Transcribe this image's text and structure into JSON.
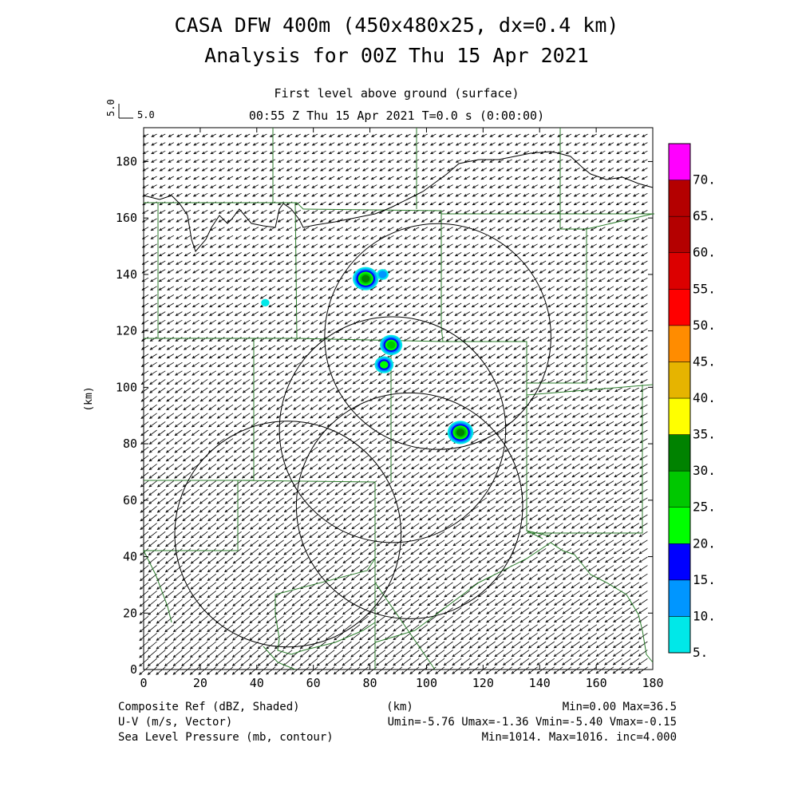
{
  "header": {
    "title_line1": "CASA DFW 400m (450x480x25, dx=0.4 km)",
    "title_line2": "Analysis for 00Z Thu 15 Apr 2021",
    "level_label": "First level above ground (surface)",
    "time_label": "00:55 Z Thu 15 Apr 2021    T=0.0 s (0:00:00)",
    "vector_ref_label": "5.0",
    "vector_ref_value": "5.0"
  },
  "footer": {
    "left1": "Composite Ref (dBZ, Shaded)",
    "left2": "U-V (m/s, Vector)",
    "left3": "Sea Level Pressure (mb, contour)",
    "center1": "(km)",
    "right1": "Min=0.00 Max=36.5",
    "right2": "Umin=-5.76 Umax=-1.36 Vmin=-5.40 Vmax=-0.15",
    "right3": "Min=1014. Max=1016. inc=4.000"
  },
  "chart_data": {
    "type": "heatmap",
    "ylabel": "(km)",
    "xlabel": "(km)",
    "xlim": [
      0,
      180
    ],
    "ylim": [
      0,
      192
    ],
    "x_ticks": [
      "0",
      "20",
      "40",
      "60",
      "80",
      "100",
      "120",
      "140",
      "160",
      "180"
    ],
    "y_ticks": [
      "0",
      "20",
      "40",
      "60",
      "80",
      "100",
      "120",
      "140",
      "160",
      "180"
    ],
    "colorbar": {
      "levels": [
        "5.",
        "10.",
        "15.",
        "20.",
        "25.",
        "30.",
        "35.",
        "40.",
        "45.",
        "50.",
        "55.",
        "60.",
        "65.",
        "70."
      ],
      "colors": [
        "#00e8e8",
        "#0096ff",
        "#0000ff",
        "#00ff00",
        "#00c800",
        "#008200",
        "#ffff00",
        "#e6b400",
        "#ff8c00",
        "#ff0000",
        "#dc0000",
        "#b40000",
        "#b40000",
        "#ff00ff"
      ]
    },
    "vector_field": {
      "u_min": -5.76,
      "u_max": -1.36,
      "v_min": -5.4,
      "v_max": -0.15,
      "reference_speed": 5.0
    },
    "reflectivity_cells": [
      {
        "x": 78.5,
        "y": 138.5,
        "max_dbz": 30
      },
      {
        "x": 84.5,
        "y": 140.0,
        "max_dbz": 10
      },
      {
        "x": 43.0,
        "y": 130.0,
        "max_dbz": 8
      },
      {
        "x": 87.5,
        "y": 115.0,
        "max_dbz": 25
      },
      {
        "x": 85.0,
        "y": 108.0,
        "max_dbz": 20
      },
      {
        "x": 112.0,
        "y": 84.0,
        "max_dbz": 30
      }
    ],
    "range_rings": [
      {
        "cx": 104,
        "cy": 118,
        "r": 40
      },
      {
        "cx": 88,
        "cy": 85,
        "r": 40
      },
      {
        "cx": 94,
        "cy": 58,
        "r": 40
      },
      {
        "cx": 51,
        "cy": 48,
        "r": 40
      }
    ]
  }
}
